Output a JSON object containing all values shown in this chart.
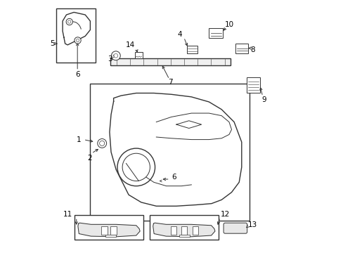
{
  "bg_color": "#ffffff",
  "line_color": "#333333",
  "text_color": "#000000"
}
